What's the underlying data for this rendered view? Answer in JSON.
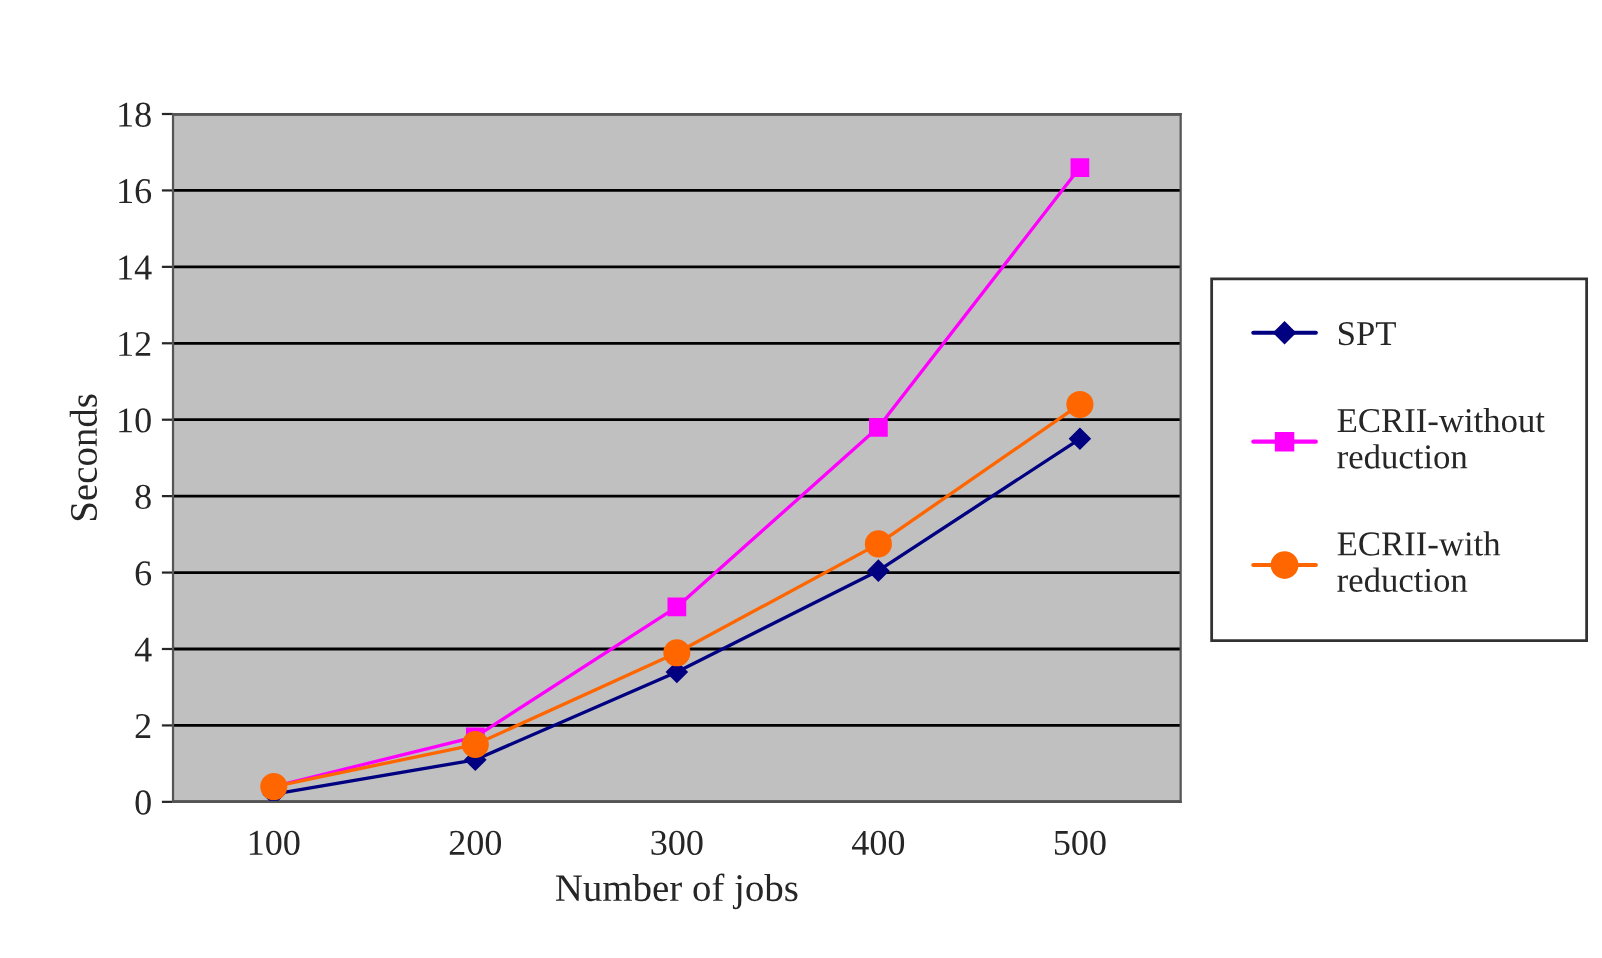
{
  "chart_data": {
    "type": "line",
    "xlabel": "Number of jobs",
    "ylabel": "Seconds",
    "categories": [
      "100",
      "200",
      "300",
      "400",
      "500"
    ],
    "series": [
      {
        "name": "SPT",
        "color": "#000080",
        "marker": "diamond",
        "values": [
          0.2,
          1.1,
          3.4,
          6.05,
          9.5
        ]
      },
      {
        "name": "ECRII-without reduction",
        "color": "#ff00ff",
        "marker": "square",
        "values": [
          0.4,
          1.7,
          5.1,
          9.8,
          16.6
        ]
      },
      {
        "name": "ECRII-with reduction",
        "color": "#ff6600",
        "marker": "circle",
        "values": [
          0.4,
          1.5,
          3.9,
          6.75,
          10.4
        ]
      }
    ],
    "ylim": [
      0,
      18
    ],
    "yticks": [
      0,
      2,
      4,
      6,
      8,
      10,
      12,
      14,
      16,
      18
    ],
    "grid": "y",
    "legend": "right",
    "line_style": "solid"
  }
}
